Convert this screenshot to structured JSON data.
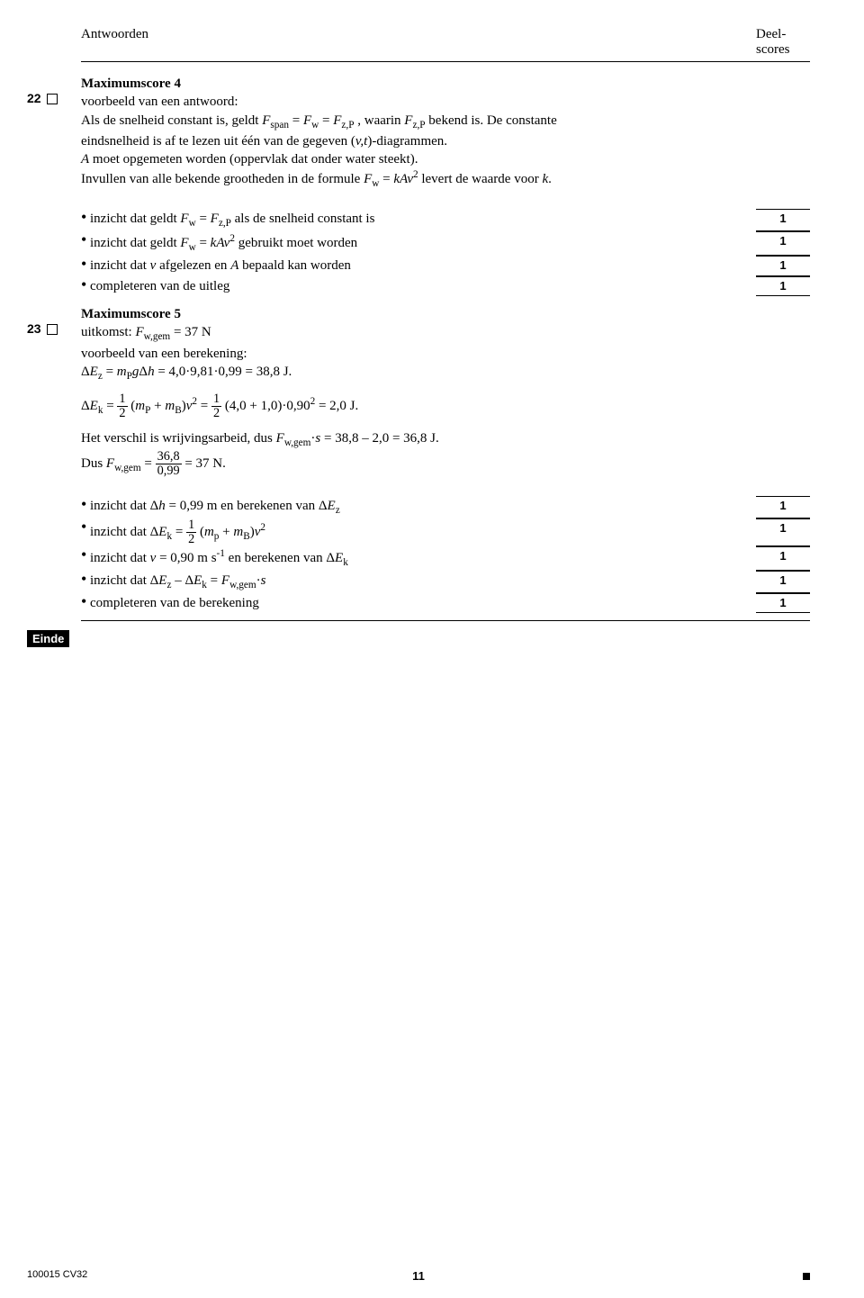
{
  "header": {
    "left": "Antwoorden",
    "right_line1": "Deel-",
    "right_line2": "scores"
  },
  "q22": {
    "num": "22",
    "maxscore": "Maximumscore 4",
    "l1": "voorbeeld van een antwoord:",
    "l2a": "Als de snelheid constant is, geldt ",
    "l2b": " , waarin ",
    "l2c": " bekend is. De constante",
    "l3": "eindsnelheid is af te lezen uit één van de gegeven (",
    "l3b": ")-diagrammen.",
    "l4a": " moet opgemeten worden (oppervlak dat onder water steekt).",
    "l5a": "Invullen van alle bekende grootheden in de formule ",
    "l5b": " levert de waarde voor ",
    "rubric": [
      {
        "text_a": "inzicht dat geldt ",
        "text_b": " als de snelheid constant is",
        "score": "1"
      },
      {
        "text_a": "inzicht dat geldt ",
        "text_b": " gebruikt moet worden",
        "score": "1"
      },
      {
        "text_a": "inzicht dat ",
        "text_mid": " afgelezen en ",
        "text_b": " bepaald kan worden",
        "score": "1"
      },
      {
        "text_a": "completeren van de uitleg",
        "score": "1"
      }
    ]
  },
  "q23": {
    "num": "23",
    "maxscore": "Maximumscore 5",
    "l1a": "uitkomst: ",
    "l1b": " = 37 N",
    "l2": "voorbeeld van een berekening:",
    "l3b": " = 4,0·9,81·0,99 = 38,8 J.",
    "l4mid": " (4,0 + 1,0)·0,90",
    "l4b": " = 2,0 J.",
    "l5a": "Het verschil is wrijvingsarbeid, dus ",
    "l5b": " = 38,8 – 2,0 = 36,8 J.",
    "l6a": "Dus ",
    "l6b": " = 37 N.",
    "frac_num": "36,8",
    "frac_den": "0,99",
    "rubric": [
      {
        "text_a": "inzicht dat Δ",
        "text_mid": " = 0,99 m en berekenen van Δ",
        "score": "1"
      },
      {
        "text_a": "inzicht dat Δ",
        "score": "1"
      },
      {
        "text_a": "inzicht dat ",
        "text_mid": " = 0,90 m s",
        "text_b": " en berekenen van Δ",
        "score": "1"
      },
      {
        "text_a": "inzicht dat Δ",
        "text_mid": " – Δ",
        "score": "1"
      },
      {
        "text_a": "completeren van de berekening",
        "score": "1"
      }
    ]
  },
  "einde": "Einde",
  "footer": {
    "code": "100015  CV32",
    "page": "11"
  }
}
